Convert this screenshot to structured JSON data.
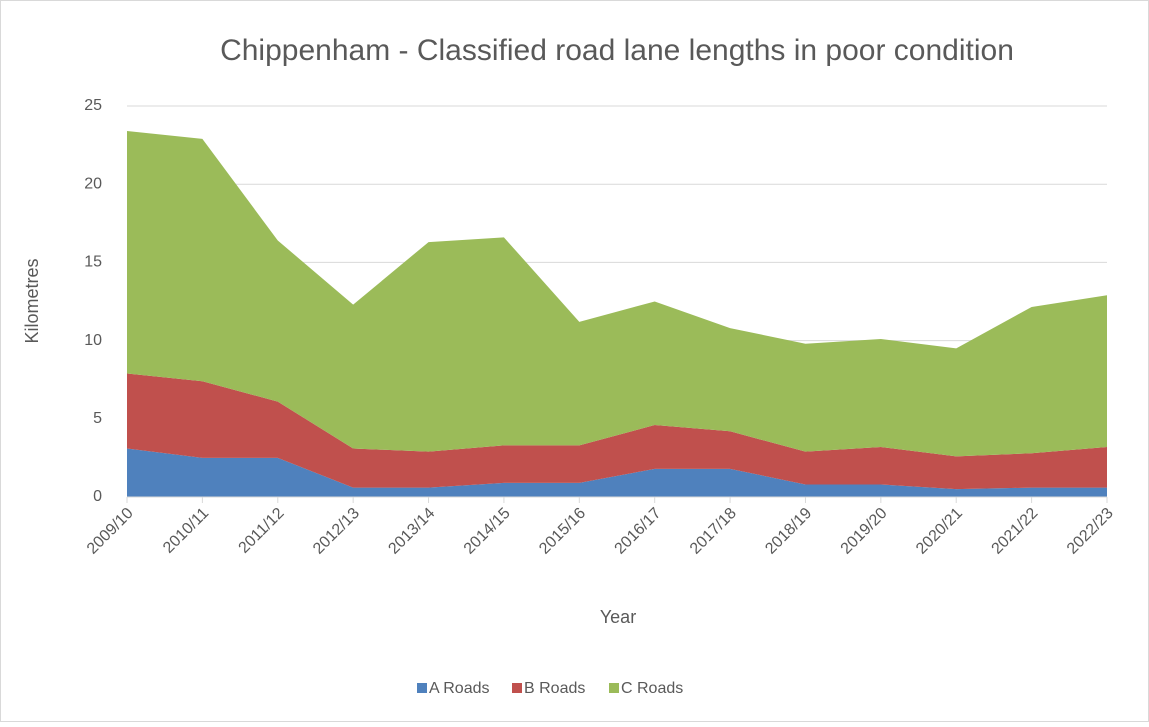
{
  "chart_data": {
    "type": "stacked_area",
    "title": "Chippenham - Classified road lane lengths in poor condition",
    "x_label": "Year",
    "y_label": "Kilometres",
    "categories": [
      "2009/10",
      "2010/11",
      "2011/12",
      "2012/13",
      "2013/14",
      "2014/15",
      "2015/16",
      "2016/17",
      "2017/18",
      "2018/19",
      "2019/20",
      "2020/21",
      "2021/22",
      "2022/23"
    ],
    "series": [
      {
        "name": "A Roads",
        "color": "#4f81bd",
        "values": [
          3.1,
          2.5,
          2.5,
          0.6,
          0.6,
          0.9,
          0.9,
          1.8,
          1.8,
          0.8,
          0.8,
          0.5,
          0.6,
          0.6
        ]
      },
      {
        "name": "B Roads",
        "color": "#c0504d",
        "values": [
          4.8,
          4.9,
          3.6,
          2.5,
          2.3,
          2.4,
          2.4,
          2.8,
          2.4,
          2.1,
          2.4,
          2.1,
          2.2,
          2.6
        ]
      },
      {
        "name": "C Roads",
        "color": "#9bbb59",
        "values": [
          15.5,
          15.5,
          10.3,
          9.2,
          13.4,
          13.3,
          7.9,
          7.9,
          6.6,
          6.9,
          6.9,
          6.9,
          9.35,
          9.7
        ]
      }
    ],
    "ylim": [
      0,
      25
    ],
    "yticks": [
      0,
      5,
      10,
      15,
      20,
      25
    ],
    "grid": true,
    "legend": "bottom"
  }
}
